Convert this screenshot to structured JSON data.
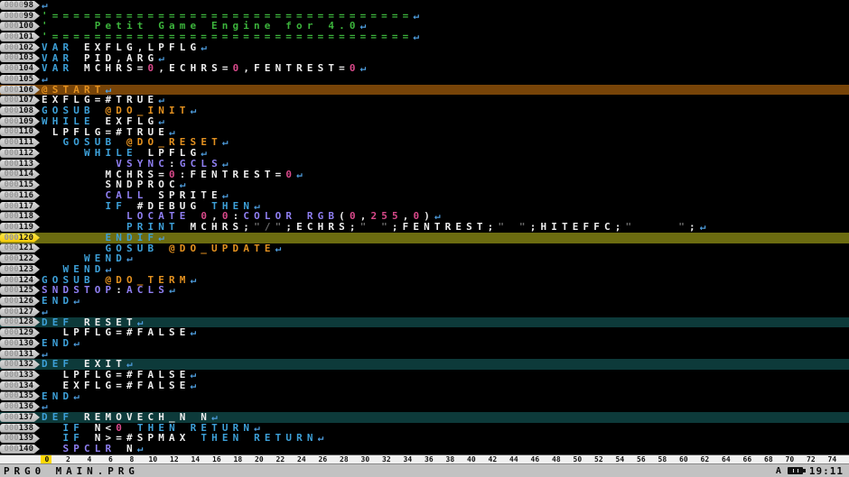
{
  "palette": {
    "background": "#000000",
    "row_backgrounds": {
      "label": "#774408",
      "cursor": "#6c6c10",
      "def": "#0d3a3a"
    },
    "badge": {
      "normal": "#c6c6c6",
      "cursor": "#ffd900"
    },
    "syntax": {
      "c": "#3cb43c",
      "k": "#3da0d8",
      "i": "#8f7ff2",
      "l": "#e39120",
      "n": "#d8498a",
      "s": "#6a6a6a",
      "p": "#eeeeee",
      "r": "#4f9fe0"
    }
  },
  "editor": {
    "return_glyph": "↵",
    "rows": [
      {
        "n": 98,
        "segs": []
      },
      {
        "n": 99,
        "segs": [
          [
            "c",
            "'=================================="
          ]
        ]
      },
      {
        "n": 100,
        "segs": [
          [
            "c",
            "'    Petit Game Engine for 4.0"
          ]
        ]
      },
      {
        "n": 101,
        "segs": [
          [
            "c",
            "'=================================="
          ]
        ]
      },
      {
        "n": 102,
        "segs": [
          [
            "k",
            "VAR"
          ],
          [
            "p",
            " EXFLG,LPFLG"
          ]
        ]
      },
      {
        "n": 103,
        "segs": [
          [
            "k",
            "VAR"
          ],
          [
            "p",
            " PID,ARG"
          ]
        ]
      },
      {
        "n": 104,
        "segs": [
          [
            "k",
            "VAR"
          ],
          [
            "p",
            " MCHRS="
          ],
          [
            "n",
            "0"
          ],
          [
            "p",
            ",ECHRS="
          ],
          [
            "n",
            "0"
          ],
          [
            "p",
            ",FENTREST="
          ],
          [
            "n",
            "0"
          ]
        ]
      },
      {
        "n": 105,
        "segs": []
      },
      {
        "n": 106,
        "bg": "label",
        "segs": [
          [
            "l",
            "@START"
          ]
        ]
      },
      {
        "n": 107,
        "segs": [
          [
            "p",
            "EXFLG=#TRUE"
          ]
        ]
      },
      {
        "n": 108,
        "segs": [
          [
            "k",
            "GOSUB"
          ],
          [
            "p",
            " "
          ],
          [
            "l",
            "@DO_INIT"
          ]
        ]
      },
      {
        "n": 109,
        "segs": [
          [
            "k",
            "WHILE"
          ],
          [
            "p",
            " EXFLG"
          ]
        ]
      },
      {
        "n": 110,
        "segs": [
          [
            "p",
            " LPFLG=#TRUE"
          ]
        ]
      },
      {
        "n": 111,
        "segs": [
          [
            "p",
            "  "
          ],
          [
            "k",
            "GOSUB"
          ],
          [
            "p",
            " "
          ],
          [
            "l",
            "@DO_RESET"
          ]
        ]
      },
      {
        "n": 112,
        "segs": [
          [
            "p",
            "    "
          ],
          [
            "k",
            "WHILE"
          ],
          [
            "p",
            " LPFLG"
          ]
        ]
      },
      {
        "n": 113,
        "segs": [
          [
            "p",
            "       "
          ],
          [
            "i",
            "VSYNC"
          ],
          [
            "p",
            ":"
          ],
          [
            "i",
            "GCLS"
          ]
        ]
      },
      {
        "n": 114,
        "segs": [
          [
            "p",
            "      MCHRS="
          ],
          [
            "n",
            "0"
          ],
          [
            "p",
            ":FENTREST="
          ],
          [
            "n",
            "0"
          ]
        ]
      },
      {
        "n": 115,
        "segs": [
          [
            "p",
            "      SNDPROC"
          ]
        ]
      },
      {
        "n": 116,
        "segs": [
          [
            "p",
            "      "
          ],
          [
            "i",
            "CALL"
          ],
          [
            "p",
            " SPRITE"
          ]
        ]
      },
      {
        "n": 117,
        "segs": [
          [
            "p",
            "      "
          ],
          [
            "k",
            "IF"
          ],
          [
            "p",
            " #DEBUG "
          ],
          [
            "k",
            "THEN"
          ]
        ]
      },
      {
        "n": 118,
        "segs": [
          [
            "p",
            "        "
          ],
          [
            "i",
            "LOCATE"
          ],
          [
            "p",
            " "
          ],
          [
            "n",
            "0"
          ],
          [
            "p",
            ","
          ],
          [
            "n",
            "0"
          ],
          [
            "p",
            ":"
          ],
          [
            "i",
            "COLOR"
          ],
          [
            "p",
            " "
          ],
          [
            "i",
            "RGB"
          ],
          [
            "p",
            "("
          ],
          [
            "n",
            "0"
          ],
          [
            "p",
            ","
          ],
          [
            "n",
            "255"
          ],
          [
            "p",
            ","
          ],
          [
            "n",
            "0"
          ],
          [
            "p",
            ")"
          ]
        ]
      },
      {
        "n": 119,
        "segs": [
          [
            "p",
            "        "
          ],
          [
            "k",
            "PRINT"
          ],
          [
            "p",
            " MCHRS;"
          ],
          [
            "s",
            "\"/\""
          ],
          [
            "p",
            ";ECHRS;"
          ],
          [
            "s",
            "\" \""
          ],
          [
            "p",
            ";FENTREST;"
          ],
          [
            "s",
            "\" \""
          ],
          [
            "p",
            ";HITEFFC;"
          ],
          [
            "s",
            "\"    \""
          ],
          [
            "p",
            ";"
          ]
        ]
      },
      {
        "n": 120,
        "bg": "cursor",
        "segs": [
          [
            "p",
            "      "
          ],
          [
            "k",
            "ENDIF"
          ]
        ]
      },
      {
        "n": 121,
        "segs": [
          [
            "p",
            "      "
          ],
          [
            "k",
            "GOSUB"
          ],
          [
            "p",
            " "
          ],
          [
            "l",
            "@DO_UPDATE"
          ]
        ]
      },
      {
        "n": 122,
        "segs": [
          [
            "p",
            "    "
          ],
          [
            "k",
            "WEND"
          ]
        ]
      },
      {
        "n": 123,
        "segs": [
          [
            "p",
            "  "
          ],
          [
            "k",
            "WEND"
          ]
        ]
      },
      {
        "n": 124,
        "segs": [
          [
            "k",
            "GOSUB"
          ],
          [
            "p",
            " "
          ],
          [
            "l",
            "@DO_TERM"
          ]
        ]
      },
      {
        "n": 125,
        "segs": [
          [
            "i",
            "SNDSTOP"
          ],
          [
            "p",
            ":"
          ],
          [
            "i",
            "ACLS"
          ]
        ]
      },
      {
        "n": 126,
        "segs": [
          [
            "k",
            "END"
          ]
        ]
      },
      {
        "n": 127,
        "segs": []
      },
      {
        "n": 128,
        "bg": "def",
        "segs": [
          [
            "k",
            "DEF"
          ],
          [
            "p",
            " RESET"
          ]
        ]
      },
      {
        "n": 129,
        "segs": [
          [
            "p",
            "  LPFLG=#FALSE"
          ]
        ]
      },
      {
        "n": 130,
        "segs": [
          [
            "k",
            "END"
          ]
        ]
      },
      {
        "n": 131,
        "segs": []
      },
      {
        "n": 132,
        "bg": "def",
        "segs": [
          [
            "k",
            "DEF"
          ],
          [
            "p",
            " EXIT"
          ]
        ]
      },
      {
        "n": 133,
        "segs": [
          [
            "p",
            "  LPFLG=#FALSE"
          ]
        ]
      },
      {
        "n": 134,
        "segs": [
          [
            "p",
            "  EXFLG=#FALSE"
          ]
        ]
      },
      {
        "n": 135,
        "segs": [
          [
            "k",
            "END"
          ]
        ]
      },
      {
        "n": 136,
        "segs": []
      },
      {
        "n": 137,
        "bg": "def",
        "segs": [
          [
            "k",
            "DEF"
          ],
          [
            "p",
            " REMOVECH_N N"
          ]
        ]
      },
      {
        "n": 138,
        "segs": [
          [
            "p",
            "  "
          ],
          [
            "k",
            "IF"
          ],
          [
            "p",
            " N<"
          ],
          [
            "n",
            "0"
          ],
          [
            "p",
            " "
          ],
          [
            "k",
            "THEN"
          ],
          [
            "p",
            " "
          ],
          [
            "k",
            "RETURN"
          ]
        ]
      },
      {
        "n": 139,
        "segs": [
          [
            "p",
            "  "
          ],
          [
            "k",
            "IF"
          ],
          [
            "p",
            " N>=#SPMAX "
          ],
          [
            "k",
            "THEN"
          ],
          [
            "p",
            " "
          ],
          [
            "k",
            "RETURN"
          ]
        ]
      },
      {
        "n": 140,
        "segs": [
          [
            "p",
            "  "
          ],
          [
            "i",
            "SPCLR"
          ],
          [
            "p",
            " N"
          ]
        ]
      }
    ]
  },
  "ruler": {
    "start": 0,
    "end": 74,
    "step": 2,
    "cursor_col": 0
  },
  "status": {
    "filename": "PRG0 MAIN.PRG",
    "mode": "A",
    "time": "19:11"
  }
}
